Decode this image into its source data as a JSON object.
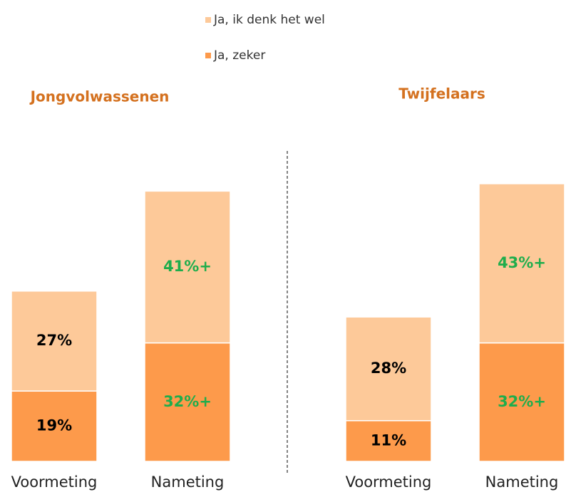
{
  "chart_data": [
    {
      "type": "bar",
      "stacked": true,
      "title": "Jongvolwassenen",
      "categories": [
        "Voormeting",
        "Nameting"
      ],
      "series": [
        {
          "name": "Ja, zeker",
          "color": "#fd9a4b",
          "values": [
            19,
            32
          ],
          "value_labels": [
            "19%",
            "32%+"
          ],
          "value_label_colors": [
            "#000000",
            "#1fad4c"
          ]
        },
        {
          "name": "Ja, ik denk het wel",
          "color": "#fdc999",
          "values": [
            27,
            41
          ],
          "value_labels": [
            "27%",
            "41%+"
          ],
          "value_label_colors": [
            "#000000",
            "#1fad4c"
          ]
        }
      ]
    },
    {
      "type": "bar",
      "stacked": true,
      "title": "Twijfelaars",
      "categories": [
        "Voormeting",
        "Nameting"
      ],
      "series": [
        {
          "color": "#fd9a4b",
          "values": [
            11,
            32
          ],
          "value_labels": [
            "11%",
            "32%+"
          ],
          "value_label_colors": [
            "#000000",
            "#1fad4c"
          ]
        },
        {
          "color": "#fdc999",
          "values": [
            28,
            43
          ],
          "value_labels": [
            "28%",
            "43%+"
          ],
          "value_label_colors": [
            "#000000",
            "#1fad4c"
          ]
        }
      ]
    }
  ]
}
